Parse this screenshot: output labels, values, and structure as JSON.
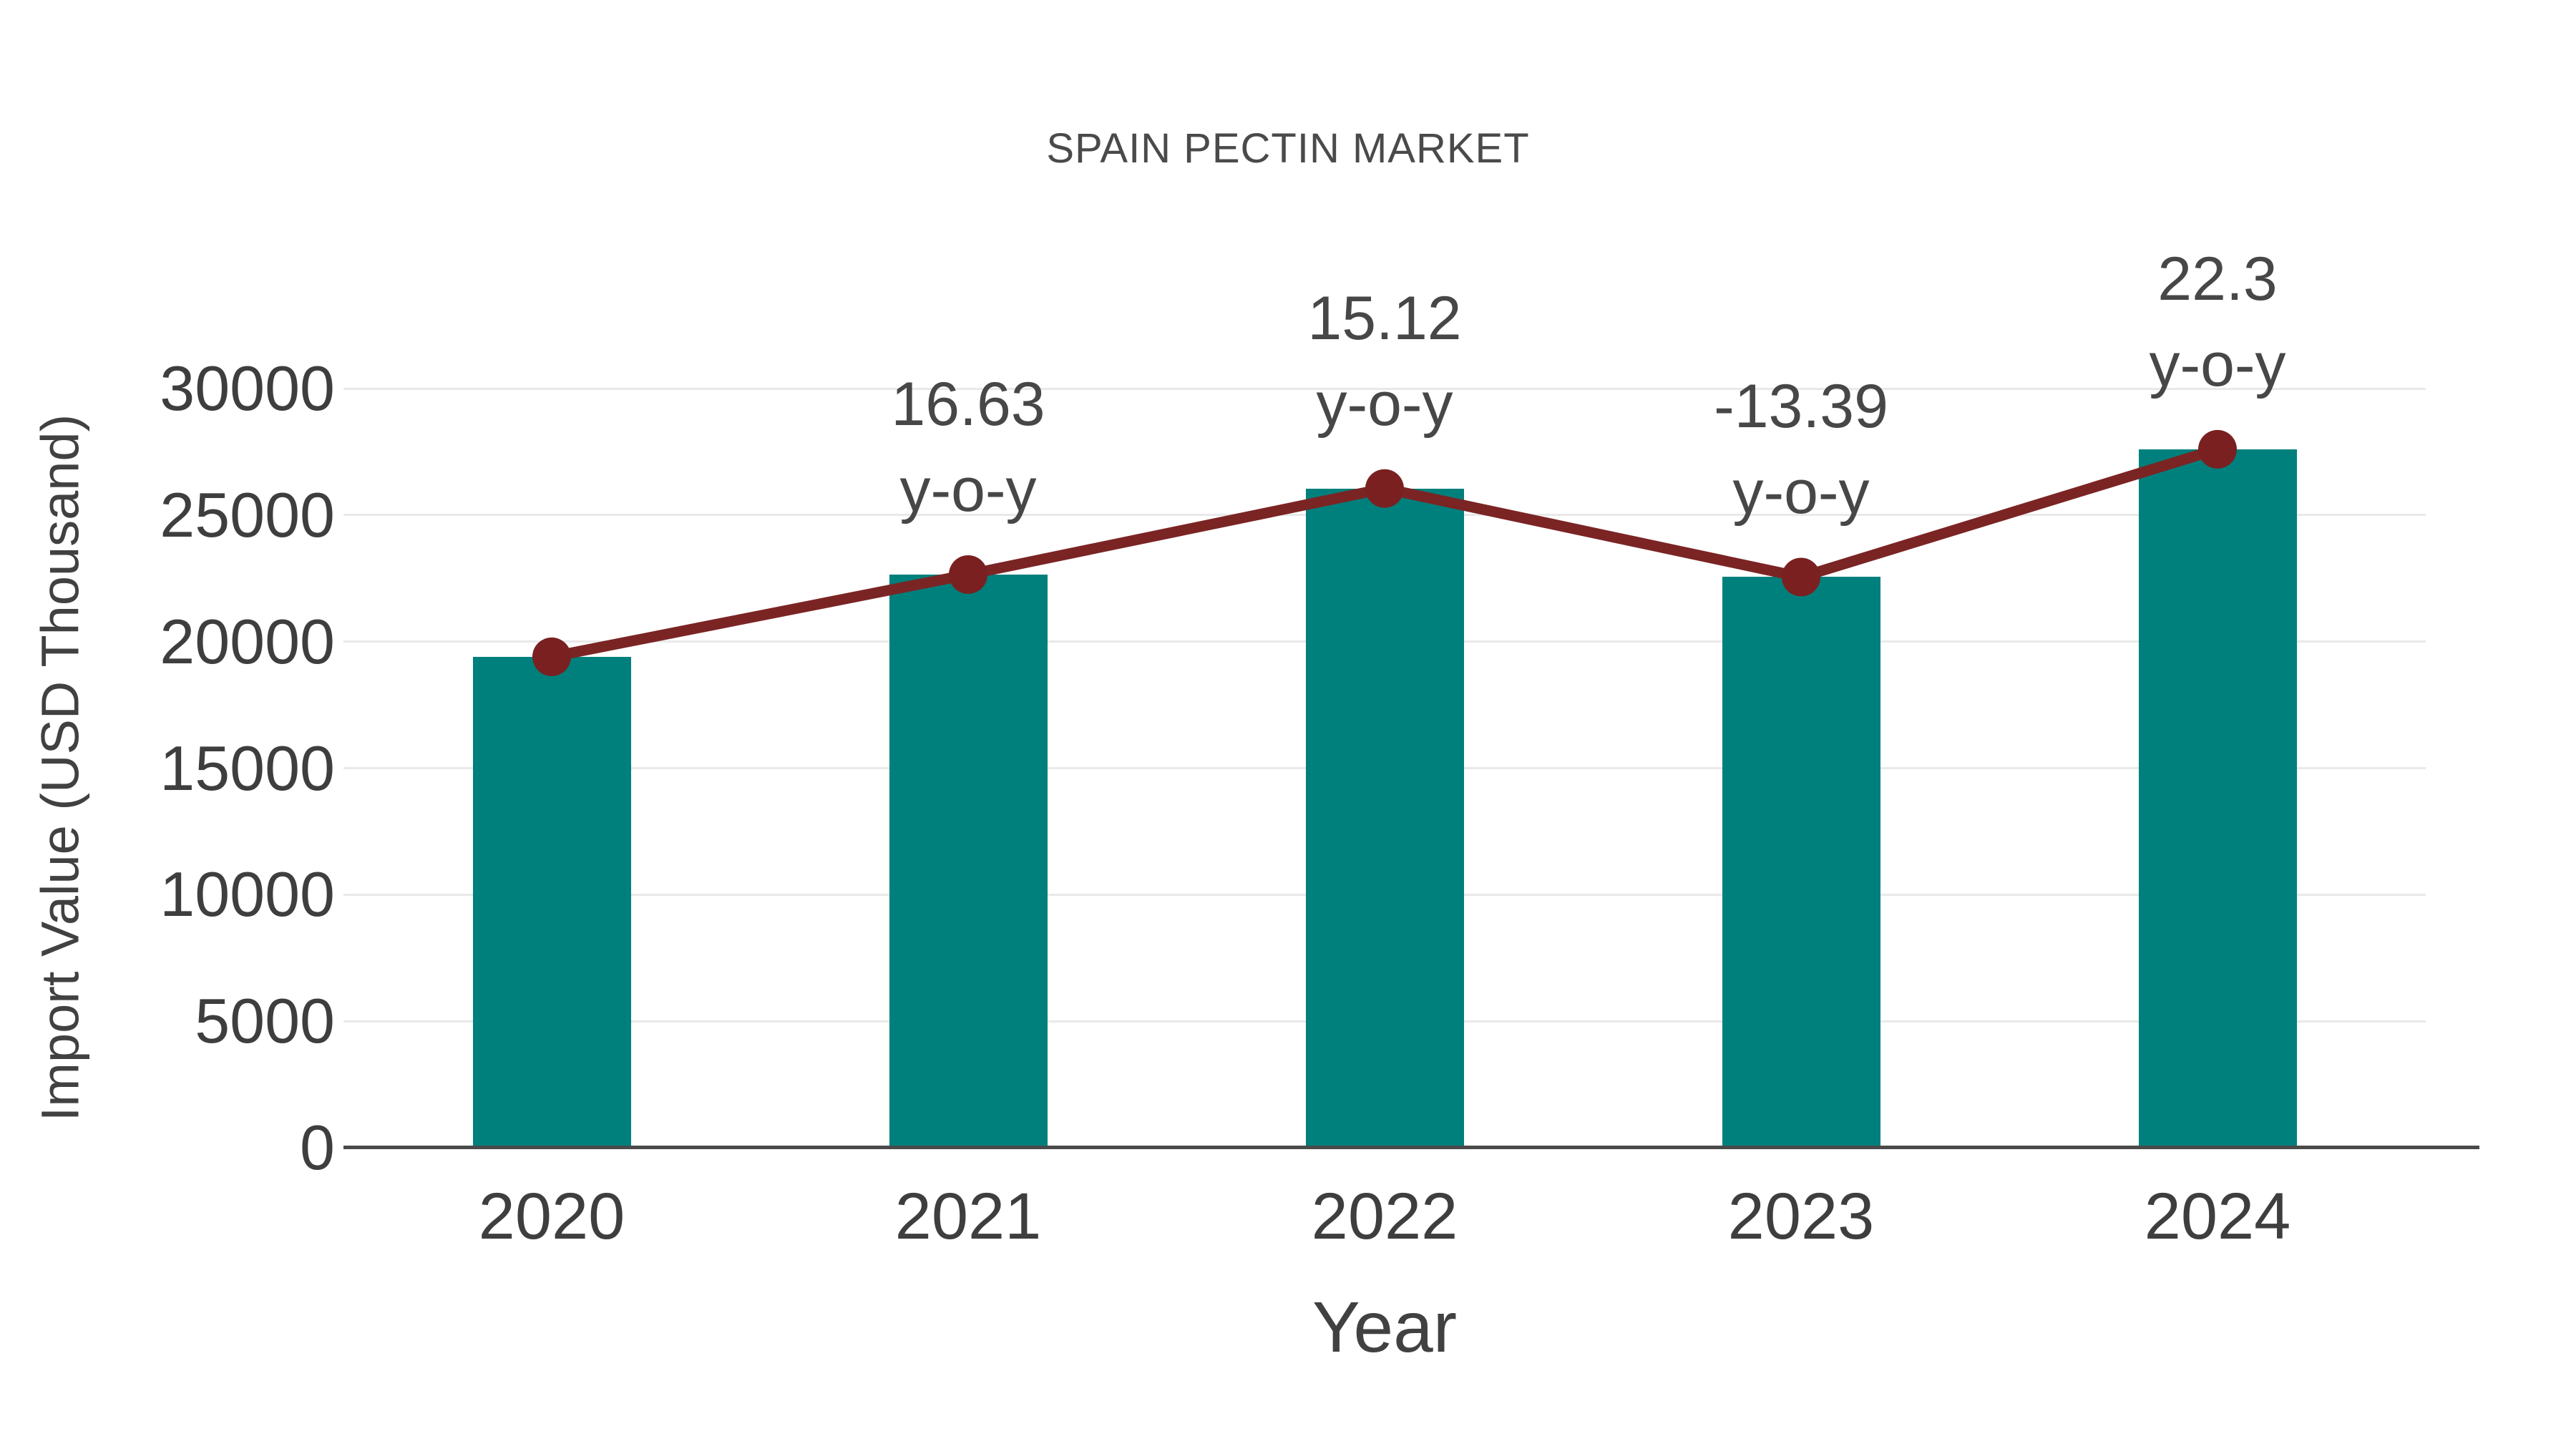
{
  "page": {
    "background": "#ffffff"
  },
  "chart_data": {
    "type": "bar",
    "title": "SPAIN PECTIN MARKET",
    "xlabel": "Year",
    "ylabel": "Import Value (USD Thousand)",
    "categories": [
      "2020",
      "2021",
      "2022",
      "2023",
      "2024"
    ],
    "series": [
      {
        "name": "import-value-bars",
        "type": "bar",
        "values": [
          19400,
          22650,
          26050,
          22550,
          27600
        ],
        "color": "#00807d"
      },
      {
        "name": "yoy-trend-line",
        "type": "line",
        "values": [
          19400,
          22650,
          26050,
          22550,
          27600
        ],
        "color": "#7b2424",
        "marker": "circle",
        "marker_color": "#7a2020"
      }
    ],
    "annotations": [
      {
        "category": "2021",
        "value_label": "16.63",
        "suffix": "y-o-y"
      },
      {
        "category": "2022",
        "value_label": "15.12",
        "suffix": "y-o-y"
      },
      {
        "category": "2023",
        "value_label": "-13.39",
        "suffix": "y-o-y"
      },
      {
        "category": "2024",
        "value_label": "22.3",
        "suffix": "y-o-y"
      }
    ],
    "ylim": [
      0,
      30000
    ],
    "ytick_step": 5000,
    "ytick_labels": [
      "0",
      "5000",
      "10000",
      "15000",
      "20000",
      "25000",
      "30000"
    ],
    "grid": true,
    "legend": "none",
    "colors": {
      "grid": "#e9e9e9",
      "axis": "#4a4a4a",
      "tick_text": "#3e3e3e",
      "title_text": "#4a4a4a",
      "annotation_text": "#474747",
      "axis_title_text": "#414141"
    }
  }
}
